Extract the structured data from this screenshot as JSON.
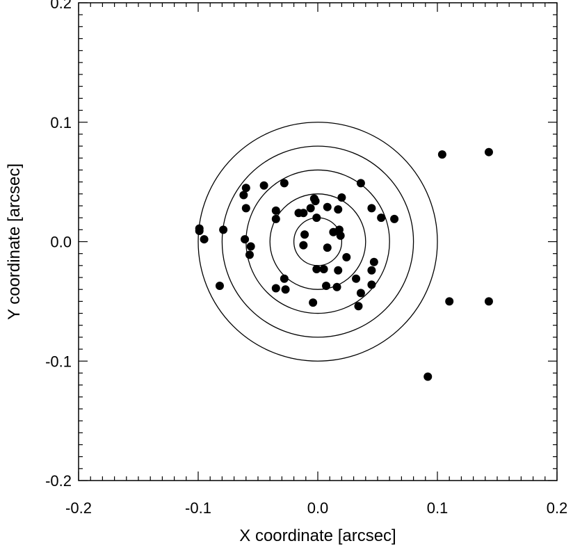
{
  "chart_data": {
    "type": "scatter",
    "title": "",
    "xlabel": "X coordinate [arcsec]",
    "ylabel": "Y coordinate [arcsec]",
    "xlim": [
      -0.2,
      0.2
    ],
    "ylim": [
      -0.2,
      0.2
    ],
    "xticks": [
      -0.2,
      -0.1,
      0.0,
      0.1,
      0.2
    ],
    "xtick_labels": [
      "-0.2",
      "-0.1",
      "0.0",
      "0.1",
      "0.2"
    ],
    "yticks": [
      -0.2,
      -0.1,
      0.0,
      0.1,
      0.2
    ],
    "ytick_labels": [
      "-0.2",
      "-0.1",
      "0.0",
      "0.1",
      "0.2"
    ],
    "grid": false,
    "circles": {
      "center": [
        0,
        0
      ],
      "radii": [
        0.02,
        0.04,
        0.06,
        0.08,
        0.1
      ]
    },
    "marker_color": "#000000",
    "points": [
      {
        "x": -0.099,
        "y": 0.011
      },
      {
        "x": -0.099,
        "y": 0.009
      },
      {
        "x": -0.095,
        "y": 0.002
      },
      {
        "x": -0.079,
        "y": 0.01
      },
      {
        "x": -0.082,
        "y": -0.037
      },
      {
        "x": -0.06,
        "y": 0.045
      },
      {
        "x": -0.062,
        "y": 0.039
      },
      {
        "x": -0.06,
        "y": 0.028
      },
      {
        "x": -0.061,
        "y": 0.002
      },
      {
        "x": -0.056,
        "y": -0.004
      },
      {
        "x": -0.057,
        "y": -0.011
      },
      {
        "x": -0.045,
        "y": 0.047
      },
      {
        "x": -0.028,
        "y": 0.049
      },
      {
        "x": -0.035,
        "y": 0.026
      },
      {
        "x": -0.035,
        "y": 0.019
      },
      {
        "x": -0.035,
        "y": -0.039
      },
      {
        "x": -0.028,
        "y": -0.031
      },
      {
        "x": -0.027,
        "y": -0.04
      },
      {
        "x": -0.016,
        "y": 0.024
      },
      {
        "x": -0.012,
        "y": 0.024
      },
      {
        "x": -0.006,
        "y": 0.028
      },
      {
        "x": -0.003,
        "y": 0.036
      },
      {
        "x": -0.002,
        "y": 0.034
      },
      {
        "x": -0.001,
        "y": 0.02
      },
      {
        "x": -0.011,
        "y": 0.006
      },
      {
        "x": -0.012,
        "y": -0.003
      },
      {
        "x": 0.008,
        "y": 0.029
      },
      {
        "x": 0.017,
        "y": 0.027
      },
      {
        "x": 0.02,
        "y": 0.037
      },
      {
        "x": 0.036,
        "y": 0.049
      },
      {
        "x": 0.013,
        "y": 0.008
      },
      {
        "x": 0.018,
        "y": 0.01
      },
      {
        "x": 0.019,
        "y": 0.005
      },
      {
        "x": 0.008,
        "y": -0.005
      },
      {
        "x": -0.001,
        "y": -0.023
      },
      {
        "x": 0.005,
        "y": -0.023
      },
      {
        "x": 0.017,
        "y": -0.024
      },
      {
        "x": 0.024,
        "y": -0.013
      },
      {
        "x": 0.007,
        "y": -0.037
      },
      {
        "x": 0.016,
        "y": -0.038
      },
      {
        "x": 0.032,
        "y": -0.031
      },
      {
        "x": 0.036,
        "y": -0.043
      },
      {
        "x": 0.034,
        "y": -0.054
      },
      {
        "x": -0.004,
        "y": -0.051
      },
      {
        "x": 0.045,
        "y": 0.028
      },
      {
        "x": 0.053,
        "y": 0.02
      },
      {
        "x": 0.064,
        "y": 0.019
      },
      {
        "x": 0.047,
        "y": -0.017
      },
      {
        "x": 0.045,
        "y": -0.024
      },
      {
        "x": 0.045,
        "y": -0.036
      },
      {
        "x": 0.104,
        "y": 0.073
      },
      {
        "x": 0.143,
        "y": 0.075
      },
      {
        "x": 0.11,
        "y": -0.05
      },
      {
        "x": 0.143,
        "y": -0.05
      },
      {
        "x": 0.092,
        "y": -0.113
      }
    ]
  }
}
